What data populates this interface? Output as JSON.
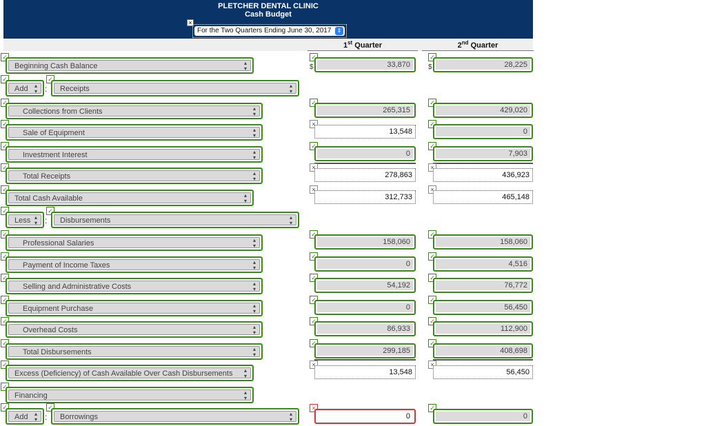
{
  "header": {
    "title": "PLETCHER DENTAL CLINIC",
    "subtitle": "Cash Budget",
    "period": "For the Two Quarters Ending June 30, 2017",
    "period_arrow": "⇕"
  },
  "columns": {
    "q1_num": "1",
    "q1_sup": "st",
    "q1_word": "Quarter",
    "q2_num": "2",
    "q2_sup": "nd",
    "q2_word": "Quarter"
  },
  "marks": {
    "check": "✓",
    "x": "×",
    "dollar": "$",
    "colon": ":",
    "spin_up": "▴",
    "spin_down": "▾"
  },
  "rows": {
    "beginning": {
      "label": "Beginning Cash Balance",
      "q1": "33,870",
      "q2": "28,225"
    },
    "add_receipts": {
      "op": "Add",
      "label": "Receipts"
    },
    "collections": {
      "label": "Collections from Clients",
      "q1": "265,315",
      "q2": "429,020"
    },
    "sale_equipment": {
      "label": "Sale of Equipment",
      "q1": "13,548",
      "q2": "0"
    },
    "investment_interest": {
      "label": "Investment Interest",
      "q1": "0",
      "q2": "7,903"
    },
    "total_receipts": {
      "label": "Total Receipts",
      "q1": "278,863",
      "q2": "436,923"
    },
    "total_cash": {
      "label": "Total Cash Available",
      "q1": "312,733",
      "q2": "465,148"
    },
    "less_disb": {
      "op": "Less",
      "label": "Disbursements"
    },
    "professional_salaries": {
      "label": "Professional Salaries",
      "q1": "158,060",
      "q2": "158,060"
    },
    "income_taxes": {
      "label": "Payment of Income Taxes",
      "q1": "0",
      "q2": "4,516"
    },
    "selling_admin": {
      "label": "Selling and Administrative Costs",
      "q1": "54,192",
      "q2": "76,772"
    },
    "equipment_purchase": {
      "label": "Equipment Purchase",
      "q1": "0",
      "q2": "56,450"
    },
    "overhead": {
      "label": "Overhead Costs",
      "q1": "86,933",
      "q2": "112,900"
    },
    "total_disb": {
      "label": "Total Disbursements",
      "q1": "299,185",
      "q2": "408,698"
    },
    "excess": {
      "label": "Excess (Deficiency) of Cash Available Over Cash Disbursements",
      "q1": "13,548",
      "q2": "56,450"
    },
    "financing": {
      "label": "Financing"
    },
    "add_borrowings": {
      "op": "Add",
      "label": "Borrowings",
      "q1": "0",
      "q2": "0"
    }
  }
}
